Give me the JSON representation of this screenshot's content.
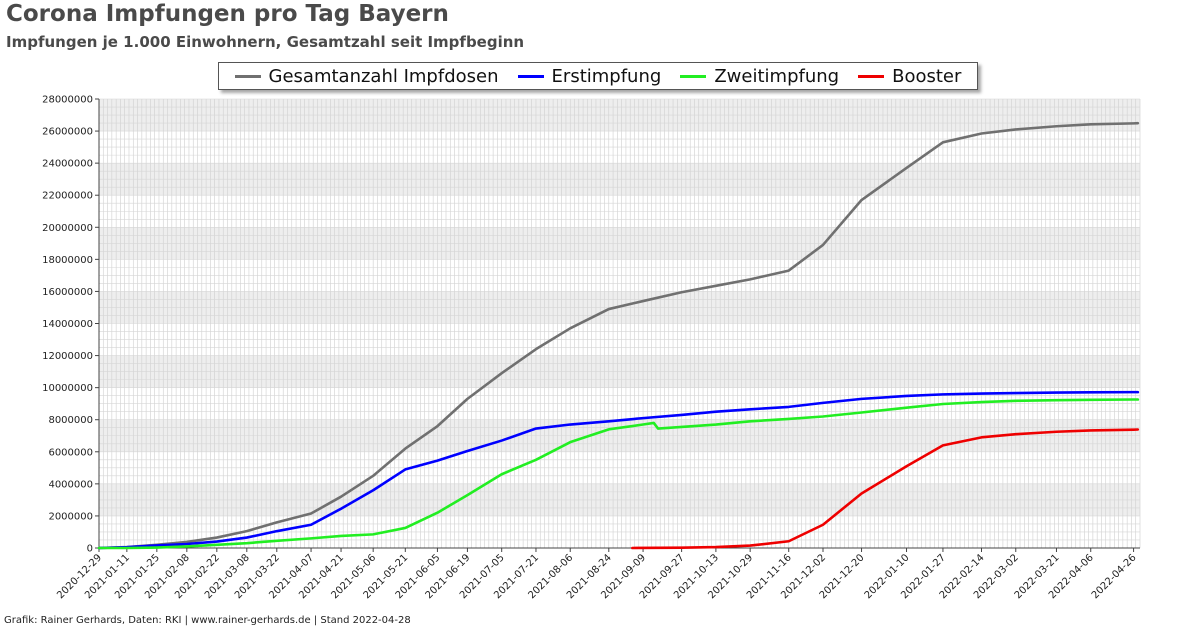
{
  "chart_data": {
    "type": "line",
    "title": "Corona Impfungen pro Tag Bayern",
    "subtitle": "Impfungen je 1.000 Einwohnern, Gesamtzahl seit Impfbeginn",
    "grid": true,
    "legend_position": "top-center",
    "ylim": [
      0,
      28000000
    ],
    "xlim": [
      "2020-12-29",
      "2022-04-29"
    ],
    "y_ticks": [
      "0",
      "2000000",
      "4000000",
      "6000000",
      "8000000",
      "10000000",
      "12000000",
      "14000000",
      "16000000",
      "18000000",
      "20000000",
      "22000000",
      "24000000",
      "26000000",
      "28000000"
    ],
    "x_ticks": [
      "2020-12-29",
      "2021-01-11",
      "2021-01-25",
      "2021-02-08",
      "2021-02-22",
      "2021-03-08",
      "2021-03-22",
      "2021-04-07",
      "2021-04-21",
      "2021-05-06",
      "2021-05-21",
      "2021-06-05",
      "2021-06-19",
      "2021-07-05",
      "2021-07-21",
      "2021-08-06",
      "2021-08-24",
      "2021-09-09",
      "2021-09-27",
      "2021-10-13",
      "2021-10-29",
      "2021-11-16",
      "2021-12-02",
      "2021-12-20",
      "2022-01-10",
      "2022-01-27",
      "2022-02-14",
      "2022-03-02",
      "2022-03-21",
      "2022-04-06",
      "2022-04-26"
    ],
    "series": [
      {
        "name": "Gesamtanzahl Impfdosen",
        "color": "#707070",
        "points": [
          [
            "2020-12-29",
            0
          ],
          [
            "2021-01-11",
            60000
          ],
          [
            "2021-01-25",
            200000
          ],
          [
            "2021-02-08",
            380000
          ],
          [
            "2021-02-22",
            650000
          ],
          [
            "2021-03-08",
            1050000
          ],
          [
            "2021-03-22",
            1600000
          ],
          [
            "2021-04-07",
            2150000
          ],
          [
            "2021-04-21",
            3200000
          ],
          [
            "2021-05-06",
            4500000
          ],
          [
            "2021-05-21",
            6200000
          ],
          [
            "2021-06-05",
            7600000
          ],
          [
            "2021-06-19",
            9300000
          ],
          [
            "2021-07-05",
            10900000
          ],
          [
            "2021-07-21",
            12400000
          ],
          [
            "2021-08-06",
            13700000
          ],
          [
            "2021-08-24",
            14900000
          ],
          [
            "2021-09-09",
            15400000
          ],
          [
            "2021-09-27",
            15950000
          ],
          [
            "2021-10-13",
            16350000
          ],
          [
            "2021-10-29",
            16750000
          ],
          [
            "2021-11-16",
            17300000
          ],
          [
            "2021-12-02",
            18900000
          ],
          [
            "2021-12-20",
            21700000
          ],
          [
            "2022-01-10",
            23700000
          ],
          [
            "2022-01-27",
            25300000
          ],
          [
            "2022-02-14",
            25850000
          ],
          [
            "2022-03-02",
            26100000
          ],
          [
            "2022-03-21",
            26300000
          ],
          [
            "2022-04-06",
            26420000
          ],
          [
            "2022-04-26",
            26480000
          ],
          [
            "2022-04-28",
            26490000
          ]
        ]
      },
      {
        "name": "Erstimpfung",
        "color": "#0000ff",
        "points": [
          [
            "2020-12-29",
            0
          ],
          [
            "2021-01-11",
            50000
          ],
          [
            "2021-01-25",
            160000
          ],
          [
            "2021-02-08",
            250000
          ],
          [
            "2021-02-22",
            400000
          ],
          [
            "2021-03-08",
            650000
          ],
          [
            "2021-03-22",
            1050000
          ],
          [
            "2021-04-07",
            1450000
          ],
          [
            "2021-04-21",
            2450000
          ],
          [
            "2021-05-06",
            3600000
          ],
          [
            "2021-05-21",
            4900000
          ],
          [
            "2021-06-05",
            5450000
          ],
          [
            "2021-06-19",
            6050000
          ],
          [
            "2021-07-05",
            6700000
          ],
          [
            "2021-07-21",
            7450000
          ],
          [
            "2021-08-06",
            7700000
          ],
          [
            "2021-08-24",
            7900000
          ],
          [
            "2021-09-09",
            8100000
          ],
          [
            "2021-09-27",
            8300000
          ],
          [
            "2021-10-13",
            8500000
          ],
          [
            "2021-10-29",
            8650000
          ],
          [
            "2021-11-16",
            8800000
          ],
          [
            "2021-12-02",
            9050000
          ],
          [
            "2021-12-20",
            9300000
          ],
          [
            "2022-01-10",
            9480000
          ],
          [
            "2022-01-27",
            9580000
          ],
          [
            "2022-02-14",
            9630000
          ],
          [
            "2022-03-02",
            9660000
          ],
          [
            "2022-03-21",
            9690000
          ],
          [
            "2022-04-06",
            9710000
          ],
          [
            "2022-04-26",
            9720000
          ],
          [
            "2022-04-28",
            9720000
          ]
        ]
      },
      {
        "name": "Zweitimpfung",
        "color": "#22ee22",
        "points": [
          [
            "2020-12-29",
            0
          ],
          [
            "2021-01-11",
            0
          ],
          [
            "2021-01-25",
            30000
          ],
          [
            "2021-02-08",
            100000
          ],
          [
            "2021-02-22",
            200000
          ],
          [
            "2021-03-08",
            300000
          ],
          [
            "2021-03-22",
            450000
          ],
          [
            "2021-04-07",
            600000
          ],
          [
            "2021-04-21",
            750000
          ],
          [
            "2021-05-06",
            850000
          ],
          [
            "2021-05-21",
            1250000
          ],
          [
            "2021-06-05",
            2200000
          ],
          [
            "2021-06-19",
            3300000
          ],
          [
            "2021-07-05",
            4600000
          ],
          [
            "2021-07-21",
            5500000
          ],
          [
            "2021-08-06",
            6600000
          ],
          [
            "2021-08-24",
            7400000
          ],
          [
            "2021-09-09",
            7700000
          ],
          [
            "2021-09-14",
            7800000
          ],
          [
            "2021-09-16",
            7450000
          ],
          [
            "2021-09-27",
            7550000
          ],
          [
            "2021-10-13",
            7700000
          ],
          [
            "2021-10-29",
            7900000
          ],
          [
            "2021-11-16",
            8050000
          ],
          [
            "2021-12-02",
            8200000
          ],
          [
            "2021-12-20",
            8450000
          ],
          [
            "2022-01-10",
            8750000
          ],
          [
            "2022-01-27",
            8980000
          ],
          [
            "2022-02-14",
            9100000
          ],
          [
            "2022-03-02",
            9180000
          ],
          [
            "2022-03-21",
            9220000
          ],
          [
            "2022-04-06",
            9240000
          ],
          [
            "2022-04-26",
            9260000
          ],
          [
            "2022-04-28",
            9260000
          ]
        ]
      },
      {
        "name": "Booster",
        "color": "#ee0000",
        "points": [
          [
            "2021-09-04",
            0
          ],
          [
            "2021-09-27",
            20000
          ],
          [
            "2021-10-13",
            60000
          ],
          [
            "2021-10-29",
            150000
          ],
          [
            "2021-11-16",
            420000
          ],
          [
            "2021-12-02",
            1450000
          ],
          [
            "2021-12-20",
            3400000
          ],
          [
            "2022-01-10",
            5100000
          ],
          [
            "2022-01-27",
            6400000
          ],
          [
            "2022-02-14",
            6900000
          ],
          [
            "2022-03-02",
            7100000
          ],
          [
            "2022-03-21",
            7250000
          ],
          [
            "2022-04-06",
            7330000
          ],
          [
            "2022-04-26",
            7380000
          ],
          [
            "2022-04-28",
            7390000
          ]
        ]
      }
    ]
  },
  "footer": "Grafik: Rainer Gerhards, Daten: RKI | www.rainer-gerhards.de | Stand 2022-04-28"
}
